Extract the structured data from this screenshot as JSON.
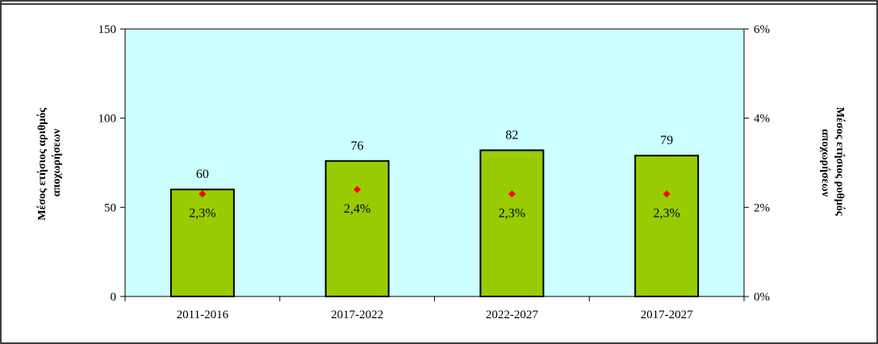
{
  "chart_data": {
    "type": "bar",
    "title": "",
    "categories": [
      "2011-2016",
      "2017-2022",
      "2022-2027",
      "2017-2027"
    ],
    "series": [
      {
        "axis": "left",
        "kind": "bar",
        "values": [
          60,
          76,
          82,
          79
        ],
        "labels": [
          "60",
          "76",
          "82",
          "79"
        ]
      },
      {
        "axis": "right",
        "kind": "marker",
        "values": [
          2.3,
          2.4,
          2.3,
          2.3
        ],
        "labels": [
          "2,3%",
          "2,4%",
          "2,3%",
          "2,3%"
        ]
      }
    ],
    "ylabel": "Μέσος ετήσιος αριθμός αποχωρήσεων",
    "ylabel_lines": [
      "Μέσος ετήσιος αριθμός",
      "αποχωρήσεων"
    ],
    "y2label": "Μέσος ετήσιος ρυθμός αποχωρήσεων",
    "y2label_lines": [
      "Μέσος ετήσιος ρυθμός",
      "αποχωρήσεων"
    ],
    "ylim": [
      0,
      150
    ],
    "y2lim": [
      0,
      6
    ],
    "yticks": [
      0,
      50,
      100,
      150
    ],
    "ytick_labels": [
      "0",
      "50",
      "100",
      "150"
    ],
    "y2ticks": [
      0,
      2,
      4,
      6
    ],
    "y2tick_labels": [
      "0%",
      "2%",
      "4%",
      "6%"
    ],
    "grid": false,
    "legend": "none",
    "colors": {
      "plot_background": "#ccffff",
      "bar_fill": "#99cc00",
      "bar_stroke": "#000000",
      "marker": "#ff0000"
    }
  }
}
